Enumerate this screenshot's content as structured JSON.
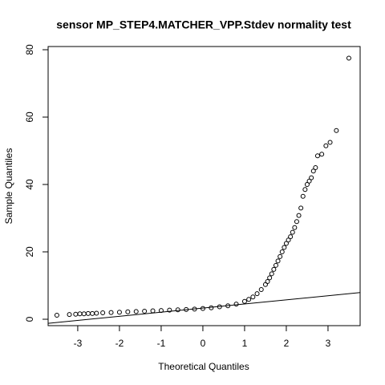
{
  "chart_data": {
    "type": "scatter",
    "title": "sensor MP_STEP4.MATCHER_VPP.Stdev normality test",
    "x_label": "Theoretical Quantiles",
    "y_label": "Sample Quantiles",
    "x": [
      -3.5,
      -3.2,
      -3.05,
      -2.95,
      -2.85,
      -2.75,
      -2.65,
      -2.55,
      -2.4,
      -2.2,
      -2.0,
      -1.8,
      -1.6,
      -1.4,
      -1.2,
      -1.0,
      -0.8,
      -0.6,
      -0.4,
      -0.2,
      0,
      0.2,
      0.4,
      0.6,
      0.8,
      1.0,
      1.1,
      1.2,
      1.3,
      1.4,
      1.5,
      1.55,
      1.6,
      1.65,
      1.7,
      1.75,
      1.8,
      1.85,
      1.9,
      1.95,
      2.0,
      2.05,
      2.1,
      2.15,
      2.2,
      2.25,
      2.3,
      2.35,
      2.4,
      2.45,
      2.5,
      2.55,
      2.6,
      2.65,
      2.7,
      2.75,
      2.85,
      2.95,
      3.05,
      3.2,
      3.5
    ],
    "values": [
      1.2,
      1.4,
      1.5,
      1.6,
      1.6,
      1.7,
      1.7,
      1.8,
      1.9,
      2.0,
      2.1,
      2.2,
      2.3,
      2.4,
      2.5,
      2.6,
      2.7,
      2.8,
      2.9,
      3.0,
      3.2,
      3.4,
      3.7,
      4.0,
      4.5,
      5.3,
      5.9,
      6.6,
      7.6,
      8.8,
      10.3,
      11.2,
      12.3,
      13.5,
      14.8,
      16.0,
      17.3,
      18.6,
      20.0,
      21.3,
      22.5,
      23.5,
      24.5,
      25.8,
      27.2,
      29.0,
      30.8,
      33.0,
      36.5,
      38.5,
      40.0,
      41.0,
      42.0,
      44.0,
      45.0,
      48.5,
      49.0,
      51.5,
      52.5,
      56.0,
      77.5
    ],
    "color": "#000000",
    "reference_line": {
      "intercept": 3.32,
      "slope": 1.22
    },
    "xlim": [
      -3.71,
      3.77
    ],
    "xticks": [
      -3,
      -2,
      -1,
      0,
      1,
      2,
      3
    ],
    "ylim": [
      -1.9,
      80.95
    ],
    "yticks": [
      0,
      20,
      40,
      60,
      80
    ]
  }
}
